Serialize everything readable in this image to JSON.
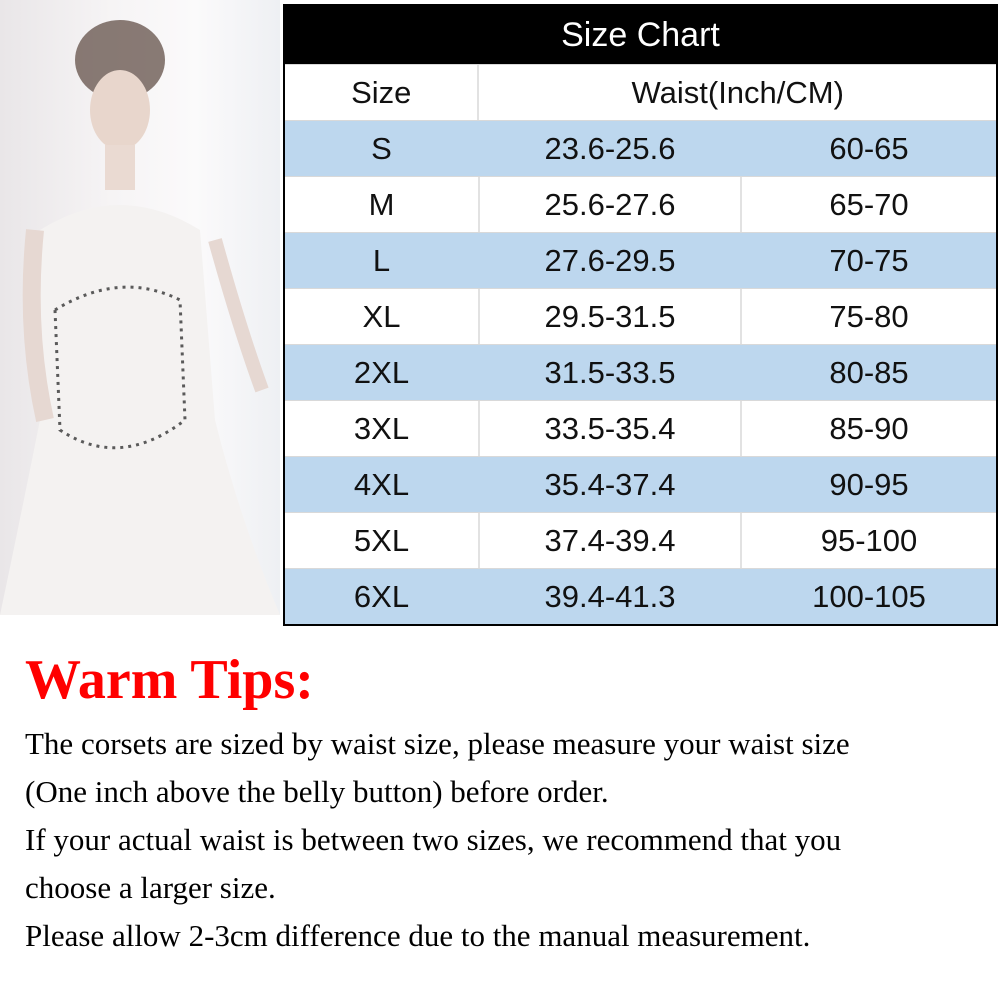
{
  "size_chart": {
    "title": "Size Chart",
    "header": {
      "size": "Size",
      "waist": "Waist(Inch/CM)"
    },
    "rows": [
      {
        "size": "S",
        "inch": "23.6-25.6",
        "cm": "60-65"
      },
      {
        "size": "M",
        "inch": "25.6-27.6",
        "cm": "65-70"
      },
      {
        "size": "L",
        "inch": "27.6-29.5",
        "cm": "70-75"
      },
      {
        "size": "XL",
        "inch": "29.5-31.5",
        "cm": "75-80"
      },
      {
        "size": "2XL",
        "inch": "31.5-33.5",
        "cm": "80-85"
      },
      {
        "size": "3XL",
        "inch": "33.5-35.4",
        "cm": "85-90"
      },
      {
        "size": "4XL",
        "inch": "35.4-37.4",
        "cm": "90-95"
      },
      {
        "size": "5XL",
        "inch": "37.4-39.4",
        "cm": "95-100"
      },
      {
        "size": "6XL",
        "inch": "39.4-41.3",
        "cm": "100-105"
      }
    ],
    "colors": {
      "header_bg": "#000000",
      "stripe": "#bdd7ee"
    }
  },
  "tips": {
    "title": "Warm Tips:",
    "title_color": "#ff0000",
    "lines": [
      "The corsets are sized by waist size, please measure your waist size",
      "(One inch above the belly button) before order.",
      "If your actual waist is between two sizes, we recommend that you",
      "choose a larger size.",
      "Please allow 2-3cm difference due to the manual measurement."
    ]
  }
}
